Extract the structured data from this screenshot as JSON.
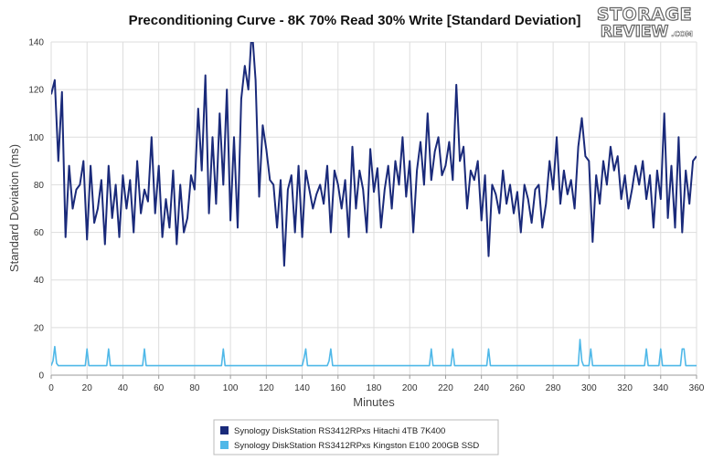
{
  "logo": {
    "top": "STORAGE",
    "bottom": "REVIEW",
    "suffix": ".COM"
  },
  "chart_data": {
    "type": "line",
    "title": "Preconditioning Curve - 8K 70% Read 30% Write [Standard Deviation]",
    "xlabel": "Minutes",
    "ylabel": "Standard Deviation (ms)",
    "xlim": [
      0,
      360
    ],
    "ylim": [
      0,
      140
    ],
    "xticks": [
      0,
      20,
      40,
      60,
      80,
      100,
      120,
      140,
      160,
      180,
      200,
      220,
      240,
      260,
      280,
      300,
      320,
      340,
      360
    ],
    "yticks": [
      0,
      20,
      40,
      60,
      80,
      100,
      120,
      140
    ],
    "grid": true,
    "legend_position": "bottom",
    "series": [
      {
        "name": "Synology DiskStation RS3412RPxs Hitachi 4TB 7K400",
        "color": "#1a2a7a",
        "x": [
          0,
          2,
          4,
          6,
          8,
          10,
          12,
          14,
          16,
          18,
          20,
          22,
          24,
          26,
          28,
          30,
          32,
          34,
          36,
          38,
          40,
          42,
          44,
          46,
          48,
          50,
          52,
          54,
          56,
          58,
          60,
          62,
          64,
          66,
          68,
          70,
          72,
          74,
          76,
          78,
          80,
          82,
          84,
          86,
          88,
          90,
          92,
          94,
          96,
          98,
          100,
          102,
          104,
          106,
          108,
          110,
          112,
          114,
          116,
          118,
          120,
          122,
          124,
          126,
          128,
          130,
          132,
          134,
          136,
          138,
          140,
          142,
          144,
          146,
          148,
          150,
          152,
          154,
          156,
          158,
          160,
          162,
          164,
          166,
          168,
          170,
          172,
          174,
          176,
          178,
          180,
          182,
          184,
          186,
          188,
          190,
          192,
          194,
          196,
          198,
          200,
          202,
          204,
          206,
          208,
          210,
          212,
          214,
          216,
          218,
          220,
          222,
          224,
          226,
          228,
          230,
          232,
          234,
          236,
          238,
          240,
          242,
          244,
          246,
          248,
          250,
          252,
          254,
          256,
          258,
          260,
          262,
          264,
          266,
          268,
          270,
          272,
          274,
          276,
          278,
          280,
          282,
          284,
          286,
          288,
          290,
          292,
          294,
          296,
          298,
          300,
          302,
          304,
          306,
          308,
          310,
          312,
          314,
          316,
          318,
          320,
          322,
          324,
          326,
          328,
          330,
          332,
          334,
          336,
          338,
          340,
          342,
          344,
          346,
          348,
          350,
          352,
          354,
          356,
          358,
          360
        ],
        "y": [
          118,
          124,
          90,
          119,
          58,
          88,
          70,
          78,
          80,
          90,
          57,
          88,
          64,
          70,
          82,
          55,
          88,
          66,
          80,
          58,
          84,
          70,
          82,
          60,
          90,
          68,
          78,
          73,
          100,
          68,
          88,
          58,
          74,
          62,
          86,
          55,
          80,
          60,
          66,
          84,
          78,
          112,
          86,
          126,
          68,
          100,
          72,
          110,
          80,
          120,
          65,
          100,
          62,
          116,
          130,
          120,
          146,
          124,
          75,
          105,
          95,
          82,
          80,
          62,
          82,
          46,
          78,
          84,
          60,
          88,
          58,
          86,
          78,
          70,
          76,
          80,
          72,
          88,
          60,
          86,
          80,
          70,
          82,
          58,
          96,
          70,
          86,
          78,
          60,
          95,
          77,
          87,
          62,
          78,
          88,
          70,
          90,
          80,
          100,
          75,
          90,
          60,
          86,
          98,
          80,
          110,
          82,
          94,
          100,
          84,
          88,
          98,
          82,
          122,
          90,
          96,
          70,
          86,
          82,
          90,
          65,
          84,
          50,
          80,
          76,
          68,
          86,
          72,
          80,
          68,
          77,
          60,
          80,
          74,
          64,
          78,
          80,
          62,
          72,
          90,
          78,
          100,
          72,
          86,
          76,
          82,
          70,
          96,
          108,
          92,
          90,
          56,
          84,
          72,
          90,
          80,
          96,
          86,
          92,
          74,
          84,
          70,
          78,
          88,
          80,
          90,
          74,
          84,
          62,
          86,
          74,
          110,
          66,
          88,
          62,
          100,
          60,
          86,
          72,
          90,
          92
        ]
      },
      {
        "name": "Synology DiskStation RS3412RPxs Kingston E100 200GB SSD",
        "color": "#4fb8e8",
        "x": [
          0,
          1,
          2,
          3,
          4,
          8,
          12,
          16,
          19,
          20,
          21,
          24,
          28,
          31,
          32,
          33,
          36,
          40,
          44,
          48,
          51,
          52,
          53,
          56,
          60,
          64,
          68,
          72,
          76,
          80,
          84,
          88,
          92,
          95,
          96,
          97,
          100,
          104,
          108,
          112,
          116,
          120,
          124,
          128,
          132,
          136,
          140,
          141,
          142,
          143,
          146,
          150,
          154,
          155,
          156,
          157,
          160,
          164,
          168,
          172,
          176,
          180,
          184,
          188,
          192,
          196,
          200,
          204,
          208,
          211,
          212,
          213,
          216,
          220,
          223,
          224,
          225,
          228,
          232,
          236,
          240,
          243,
          244,
          245,
          248,
          252,
          256,
          260,
          264,
          268,
          272,
          276,
          280,
          284,
          288,
          292,
          294,
          295,
          296,
          297,
          300,
          301,
          302,
          304,
          308,
          312,
          316,
          320,
          324,
          328,
          331,
          332,
          333,
          336,
          339,
          340,
          341,
          344,
          348,
          351,
          352,
          353,
          354,
          356,
          358,
          360
        ],
        "y": [
          4,
          6,
          12,
          5,
          4,
          4,
          4,
          4,
          4,
          11,
          4,
          4,
          4,
          4,
          11,
          4,
          4,
          4,
          4,
          4,
          4,
          11,
          4,
          4,
          4,
          4,
          4,
          4,
          4,
          4,
          4,
          4,
          4,
          4,
          11,
          4,
          4,
          4,
          4,
          4,
          4,
          4,
          4,
          4,
          4,
          4,
          4,
          7,
          11,
          4,
          4,
          4,
          4,
          6,
          11,
          4,
          4,
          4,
          4,
          4,
          4,
          4,
          4,
          4,
          4,
          4,
          4,
          4,
          4,
          4,
          11,
          4,
          4,
          4,
          4,
          11,
          4,
          4,
          4,
          4,
          4,
          4,
          11,
          4,
          4,
          4,
          4,
          4,
          4,
          4,
          4,
          4,
          4,
          4,
          4,
          4,
          4,
          15,
          6,
          4,
          4,
          11,
          4,
          4,
          4,
          4,
          4,
          4,
          4,
          4,
          4,
          11,
          4,
          4,
          4,
          11,
          4,
          4,
          4,
          4,
          11,
          11,
          4,
          4,
          4,
          4
        ]
      }
    ]
  }
}
